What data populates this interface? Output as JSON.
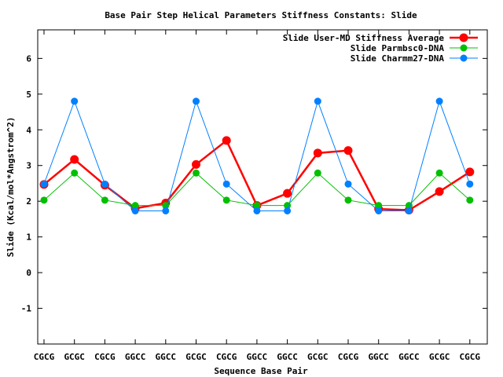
{
  "chart_data": {
    "type": "line",
    "title": "Base Pair Step Helical Parameters Stiffness Constants: Slide",
    "xlabel": "Sequence Base Pair",
    "ylabel": "Slide (Kcal/mol*Angstrom^2)",
    "ylim": [
      -2,
      6.8
    ],
    "yticks": [
      -1,
      0,
      1,
      2,
      3,
      4,
      5,
      6
    ],
    "grid": false,
    "legend_position": "top-right",
    "categories": [
      "CGCG",
      "GCGC",
      "CGCG",
      "GGCC",
      "GGCC",
      "GCGC",
      "CGCG",
      "GGCC",
      "GGCC",
      "GCGC",
      "CGCG",
      "GGCC",
      "GGCC",
      "GCGC",
      "CGCG"
    ],
    "series": [
      {
        "name": "Slide User-MD Stiffness Average",
        "color": "#ff0000",
        "values": [
          2.47,
          3.17,
          2.45,
          1.8,
          1.95,
          3.03,
          3.7,
          1.88,
          2.22,
          3.35,
          3.42,
          1.78,
          1.75,
          2.27,
          2.82
        ]
      },
      {
        "name": "Slide Parmbsc0-DNA",
        "color": "#00c000",
        "values": [
          2.03,
          2.79,
          2.03,
          1.88,
          1.88,
          2.79,
          2.03,
          1.88,
          1.88,
          2.79,
          2.03,
          1.88,
          1.88,
          2.79,
          2.03
        ]
      },
      {
        "name": "Slide Charmm27-DNA",
        "color": "#0080ff",
        "values": [
          2.48,
          4.8,
          2.48,
          1.73,
          1.73,
          4.8,
          2.48,
          1.73,
          1.73,
          4.8,
          2.48,
          1.73,
          1.73,
          4.8,
          2.48
        ]
      }
    ]
  }
}
